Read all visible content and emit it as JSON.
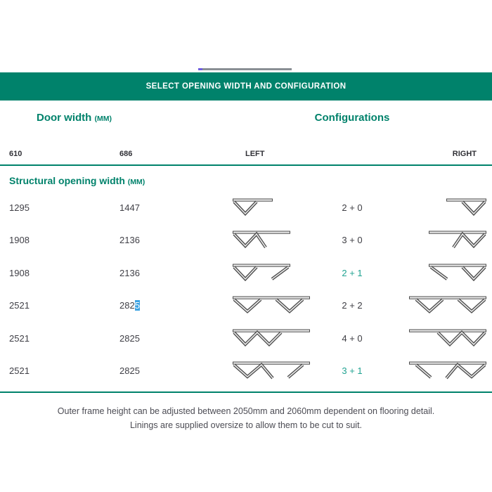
{
  "banner": {
    "title": "SELECT OPENING WIDTH AND CONFIGURATION",
    "background": "#00826B",
    "text_color": "#ffffff"
  },
  "artifact_bar": {
    "color": "#8a8f94",
    "accent_color": "#6f5de0"
  },
  "table": {
    "door_width_label": "Door width",
    "door_width_unit": "(MM)",
    "configurations_label": "Configurations",
    "col_610": "610",
    "col_686": "686",
    "col_left": "LEFT",
    "col_right": "RIGHT",
    "section_label": "Structural opening width",
    "section_unit": "(MM)",
    "rows": [
      {
        "w610": "1295",
        "w686": "1447",
        "config": "2 + 0",
        "highlight": false,
        "left_icon": "2+0-left",
        "right_icon": "2+0-right"
      },
      {
        "w610": "1908",
        "w686": "2136",
        "config": "3 + 0",
        "highlight": false,
        "left_icon": "3+0-left",
        "right_icon": "3+0-right"
      },
      {
        "w610": "1908",
        "w686": "2136",
        "config": "2 + 1",
        "highlight": true,
        "left_icon": "2+1-left",
        "right_icon": "2+1-right"
      },
      {
        "w610": "2521",
        "w686_pre": "282",
        "w686_sel": "5",
        "config": "2 + 2",
        "highlight": false,
        "left_icon": "2+2-left",
        "right_icon": "2+2-right"
      },
      {
        "w610": "2521",
        "w686": "2825",
        "config": "4 + 0",
        "highlight": false,
        "left_icon": "4+0-left",
        "right_icon": "4+0-right"
      },
      {
        "w610": "2521",
        "w686": "2825",
        "config": "3 + 1",
        "highlight": true,
        "left_icon": "3+1-left",
        "right_icon": "3+1-right"
      }
    ]
  },
  "footer": {
    "line1": "Outer frame height can be adjusted between 2050mm and 2060mm dependent on flooring detail.",
    "line2": "Linings are supplied oversize to allow them to be cut to suit."
  },
  "colors": {
    "teal": "#00826B",
    "highlight_teal": "#21a392",
    "dark_text": "#3f3f46",
    "selection_blue": "#3da4e3"
  }
}
